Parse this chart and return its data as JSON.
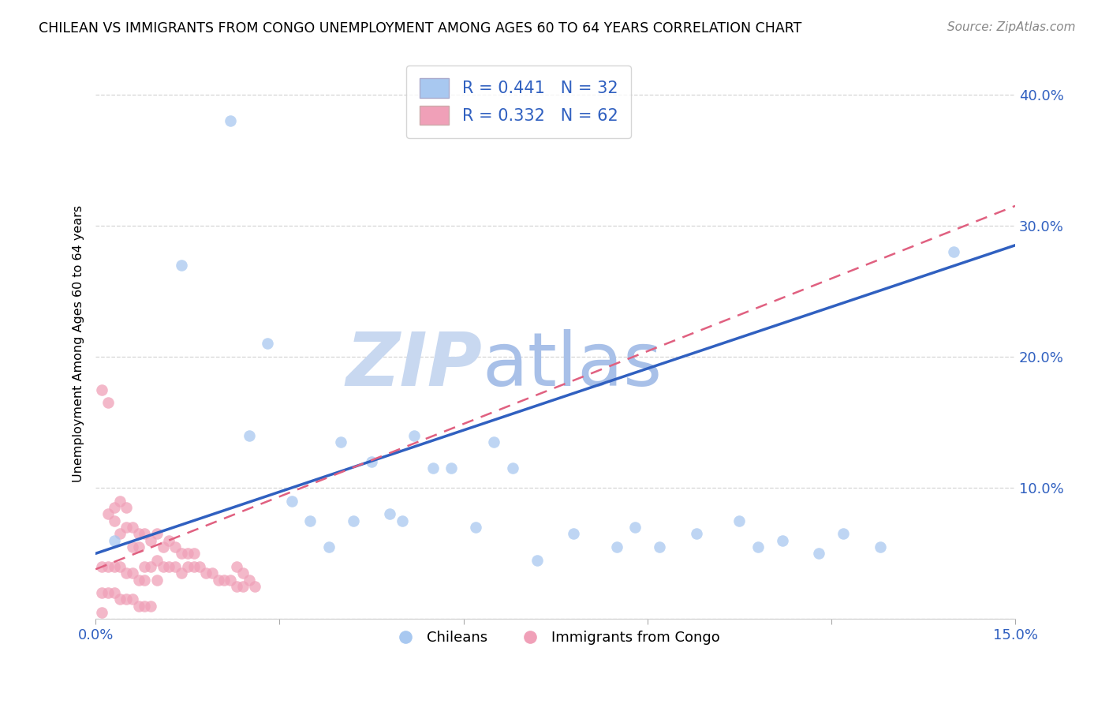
{
  "title": "CHILEAN VS IMMIGRANTS FROM CONGO UNEMPLOYMENT AMONG AGES 60 TO 64 YEARS CORRELATION CHART",
  "source": "Source: ZipAtlas.com",
  "ylabel_label": "Unemployment Among Ages 60 to 64 years",
  "xlim": [
    0.0,
    0.15
  ],
  "ylim": [
    0.0,
    0.42
  ],
  "xticks": [
    0.0,
    0.03,
    0.06,
    0.09,
    0.12,
    0.15
  ],
  "xtick_labels": [
    "0.0%",
    "",
    "",
    "",
    "",
    "15.0%"
  ],
  "yticks": [
    0.0,
    0.1,
    0.2,
    0.3,
    0.4
  ],
  "ytick_labels": [
    "",
    "10.0%",
    "20.0%",
    "30.0%",
    "40.0%"
  ],
  "chilean_color": "#A8C8F0",
  "congo_color": "#F0A0B8",
  "chilean_line_color": "#3060C0",
  "congo_line_color": "#E06080",
  "watermark_zip_color": "#C8D8F0",
  "watermark_atlas_color": "#A0B8E0",
  "legend_R_chilean": "R = 0.441",
  "legend_N_chilean": "N = 32",
  "legend_R_congo": "R = 0.332",
  "legend_N_congo": "N = 62",
  "legend_label_chilean": "Chileans",
  "legend_label_congo": "Immigrants from Congo",
  "chilean_x": [
    0.003,
    0.022,
    0.014,
    0.028,
    0.035,
    0.025,
    0.04,
    0.045,
    0.05,
    0.055,
    0.048,
    0.052,
    0.065,
    0.068,
    0.032,
    0.038,
    0.042,
    0.058,
    0.062,
    0.072,
    0.078,
    0.085,
    0.088,
    0.092,
    0.098,
    0.105,
    0.108,
    0.112,
    0.118,
    0.122,
    0.128,
    0.14
  ],
  "chilean_y": [
    0.06,
    0.38,
    0.27,
    0.21,
    0.075,
    0.14,
    0.135,
    0.12,
    0.075,
    0.115,
    0.08,
    0.14,
    0.135,
    0.115,
    0.09,
    0.055,
    0.075,
    0.115,
    0.07,
    0.045,
    0.065,
    0.055,
    0.07,
    0.055,
    0.065,
    0.075,
    0.055,
    0.06,
    0.05,
    0.065,
    0.055,
    0.28
  ],
  "congo_x": [
    0.001,
    0.001,
    0.001,
    0.002,
    0.002,
    0.002,
    0.003,
    0.003,
    0.003,
    0.004,
    0.004,
    0.004,
    0.005,
    0.005,
    0.005,
    0.006,
    0.006,
    0.006,
    0.007,
    0.007,
    0.007,
    0.008,
    0.008,
    0.008,
    0.009,
    0.009,
    0.01,
    0.01,
    0.01,
    0.011,
    0.011,
    0.012,
    0.012,
    0.013,
    0.013,
    0.014,
    0.014,
    0.015,
    0.015,
    0.016,
    0.016,
    0.017,
    0.018,
    0.019,
    0.02,
    0.021,
    0.022,
    0.023,
    0.024,
    0.001,
    0.002,
    0.003,
    0.004,
    0.005,
    0.006,
    0.007,
    0.008,
    0.009,
    0.023,
    0.024,
    0.025,
    0.026
  ],
  "congo_y": [
    0.175,
    0.04,
    0.005,
    0.165,
    0.08,
    0.04,
    0.085,
    0.075,
    0.04,
    0.09,
    0.065,
    0.04,
    0.085,
    0.07,
    0.035,
    0.07,
    0.055,
    0.035,
    0.065,
    0.055,
    0.03,
    0.065,
    0.04,
    0.03,
    0.06,
    0.04,
    0.065,
    0.045,
    0.03,
    0.055,
    0.04,
    0.06,
    0.04,
    0.055,
    0.04,
    0.05,
    0.035,
    0.05,
    0.04,
    0.05,
    0.04,
    0.04,
    0.035,
    0.035,
    0.03,
    0.03,
    0.03,
    0.025,
    0.025,
    0.02,
    0.02,
    0.02,
    0.015,
    0.015,
    0.015,
    0.01,
    0.01,
    0.01,
    0.04,
    0.035,
    0.03,
    0.025
  ],
  "chilean_line_x0": 0.0,
  "chilean_line_y0": 0.05,
  "chilean_line_x1": 0.15,
  "chilean_line_y1": 0.285,
  "congo_line_x0": 0.0,
  "congo_line_y0": 0.038,
  "congo_line_x1": 0.15,
  "congo_line_y1": 0.315
}
